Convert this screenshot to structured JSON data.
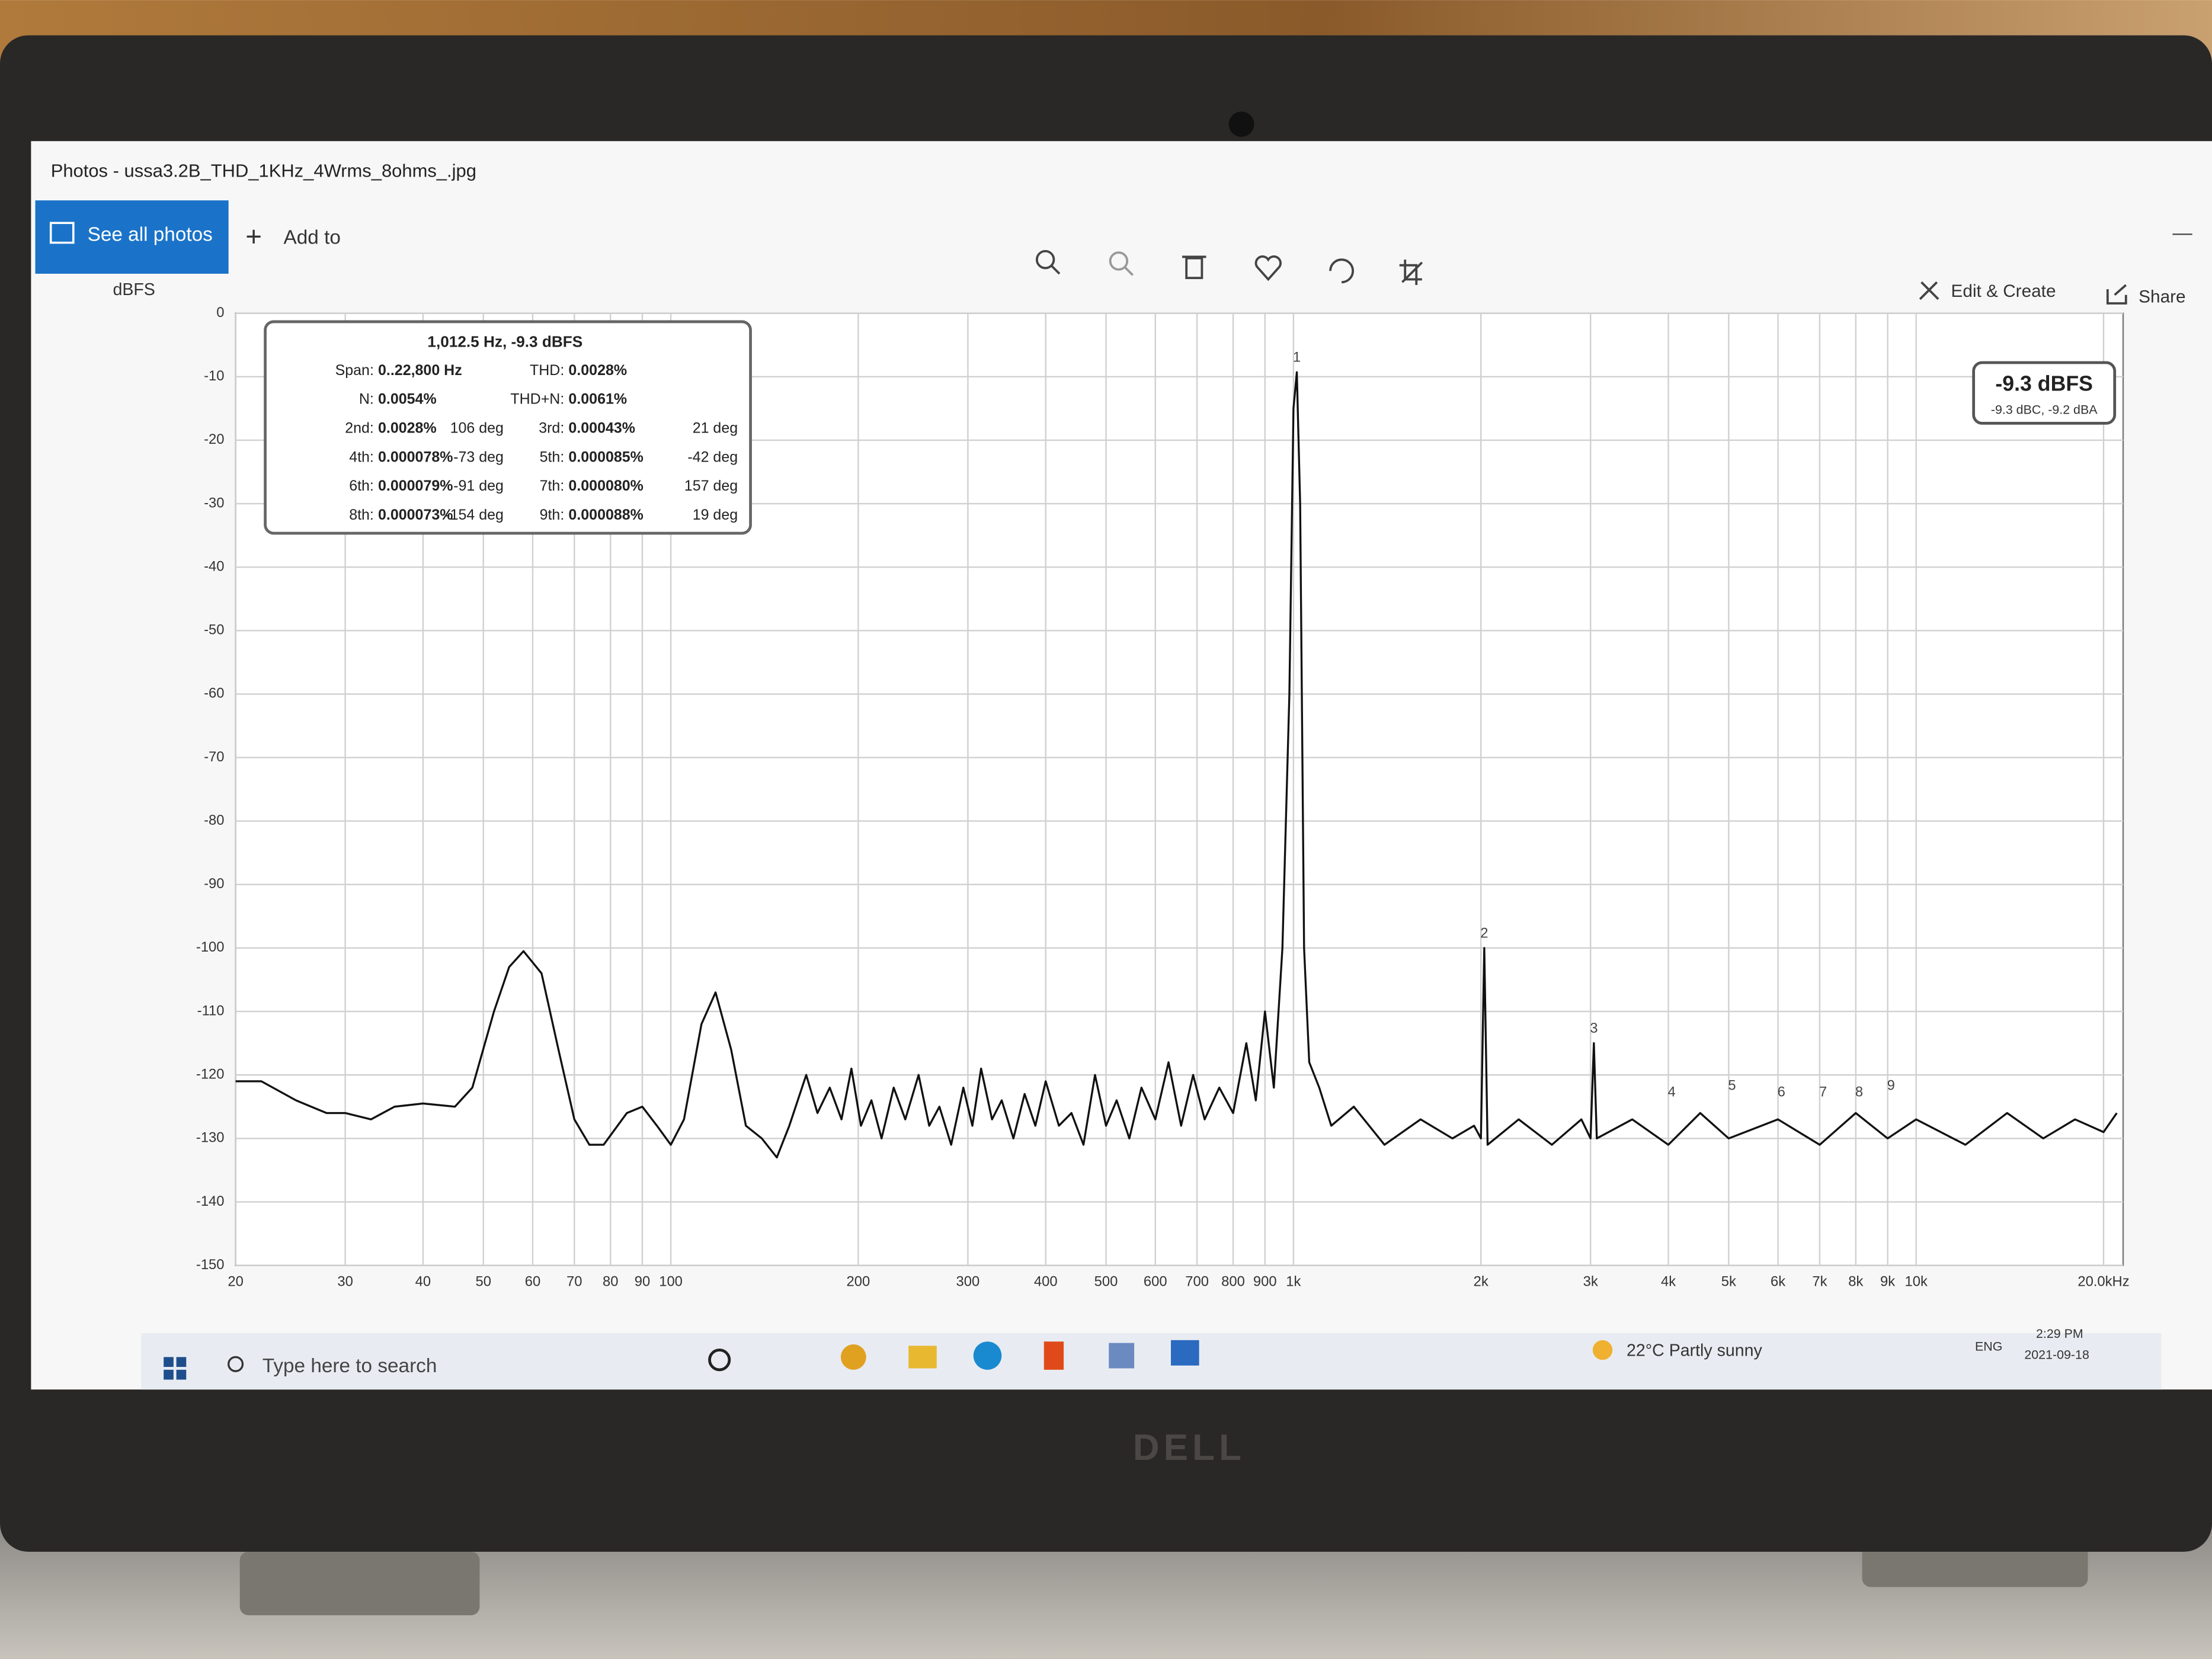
{
  "window": {
    "title": "Photos - ussa3.2B_THD_1KHz_4Wrms_8ohms_.jpg"
  },
  "toolbar": {
    "see_all": "See all photos",
    "add_to": "Add to",
    "edit_create": "Edit & Create",
    "share": "Share"
  },
  "info_box": {
    "title": "1,012.5 Hz, -9.3 dBFS",
    "rows": [
      [
        "Span:",
        "0..22,800 Hz",
        "THD:",
        "0.0028%"
      ],
      [
        "N:",
        "0.0054%",
        "THD+N:",
        "0.0061%"
      ],
      [
        "2nd:",
        "0.0028%",
        "106 deg",
        "3rd:",
        "0.00043%",
        "21 deg"
      ],
      [
        "4th:",
        "0.000078%",
        "-73 deg",
        "5th:",
        "0.000085%",
        "-42 deg"
      ],
      [
        "6th:",
        "0.000079%",
        "-91 deg",
        "7th:",
        "0.000080%",
        "157 deg"
      ],
      [
        "8th:",
        "0.000073%",
        "-154 deg",
        "9th:",
        "0.000088%",
        "19 deg"
      ]
    ]
  },
  "readout": {
    "main": "-9.3 dBFS",
    "sub": "-9.3 dBC, -9.2 dBA"
  },
  "chart_data": {
    "type": "line",
    "y_label": "dBFS",
    "log_x": true,
    "grid": true,
    "color": "#111111",
    "xlim": [
      20,
      21500
    ],
    "ylim": [
      -150,
      0
    ],
    "yticks": [
      0,
      -10,
      -20,
      -30,
      -40,
      -50,
      -60,
      -70,
      -80,
      -90,
      -100,
      -110,
      -120,
      -130,
      -140,
      -150
    ],
    "xticks": [
      20,
      30,
      40,
      50,
      60,
      70,
      80,
      90,
      100,
      200,
      300,
      400,
      500,
      600,
      700,
      800,
      900,
      {
        "value": 1000,
        "label": "1k"
      },
      {
        "value": 2000,
        "label": "2k"
      },
      {
        "value": 3000,
        "label": "3k"
      },
      {
        "value": 4000,
        "label": "4k"
      },
      {
        "value": 5000,
        "label": "5k"
      },
      {
        "value": 6000,
        "label": "6k"
      },
      {
        "value": 7000,
        "label": "7k"
      },
      {
        "value": 8000,
        "label": "8k"
      },
      {
        "value": 9000,
        "label": "9k"
      },
      {
        "value": 10000,
        "label": "10k"
      },
      {
        "value": 20000,
        "label": "20.0kHz"
      }
    ],
    "x": [
      20,
      22,
      25,
      28,
      30,
      33,
      36,
      40,
      45,
      48,
      52,
      55,
      58,
      62,
      66,
      70,
      74,
      78,
      85,
      90,
      95,
      100,
      105,
      112,
      118,
      125,
      132,
      140,
      148,
      155,
      165,
      172,
      180,
      188,
      195,
      202,
      210,
      218,
      228,
      238,
      250,
      260,
      270,
      282,
      295,
      305,
      315,
      328,
      340,
      355,
      370,
      385,
      400,
      420,
      440,
      460,
      480,
      500,
      520,
      545,
      570,
      600,
      630,
      660,
      690,
      720,
      760,
      800,
      840,
      870,
      900,
      930,
      960,
      985,
      1000,
      1012.5,
      1025,
      1040,
      1060,
      1100,
      1150,
      1250,
      1400,
      1600,
      1800,
      1950,
      2000,
      2025,
      2050,
      2300,
      2600,
      2900,
      3000,
      3037,
      3070,
      3500,
      4000,
      4500,
      5000,
      6000,
      7000,
      8000,
      9000,
      10000,
      12000,
      14000,
      16000,
      18000,
      20000,
      21000
    ],
    "values": [
      -121,
      -121,
      -124,
      -126,
      -126,
      -127,
      -125,
      -124.5,
      -125,
      -122,
      -110,
      -103,
      -100.5,
      -104,
      -116,
      -127,
      -131,
      -131,
      -126,
      -125,
      -128,
      -131,
      -127,
      -112,
      -107,
      -116,
      -128,
      -130,
      -133,
      -128,
      -120,
      -126,
      -122,
      -127,
      -119,
      -128,
      -124,
      -130,
      -122,
      -127,
      -120,
      -128,
      -125,
      -131,
      -122,
      -128,
      -119,
      -127,
      -124,
      -130,
      -123,
      -128,
      -121,
      -128,
      -126,
      -131,
      -120,
      -128,
      -124,
      -130,
      -122,
      -127,
      -118,
      -128,
      -120,
      -127,
      -122,
      -126,
      -115,
      -124,
      -110,
      -122,
      -100,
      -60,
      -15,
      -9.3,
      -30,
      -100,
      -118,
      -122,
      -128,
      -125,
      -131,
      -127,
      -130,
      -128,
      -130,
      -100,
      -131,
      -127,
      -131,
      -127,
      -130,
      -115,
      -130,
      -127,
      -131,
      -126,
      -130,
      -127,
      -131,
      -126,
      -130,
      -127,
      -131,
      -126,
      -130,
      -127,
      -129,
      -126
    ],
    "harmonics": [
      {
        "label": "1",
        "x": 1012.5,
        "y": -9.3
      },
      {
        "label": "2",
        "x": 2025,
        "y": -100
      },
      {
        "label": "3",
        "x": 3037,
        "y": -115
      },
      {
        "label": "4",
        "x": 4050,
        "y": -125
      },
      {
        "label": "5",
        "x": 5062.5,
        "y": -124
      },
      {
        "label": "6",
        "x": 6075,
        "y": -125
      },
      {
        "label": "7",
        "x": 7087.5,
        "y": -125
      },
      {
        "label": "8",
        "x": 8100,
        "y": -125
      },
      {
        "label": "9",
        "x": 9112.5,
        "y": -124
      }
    ]
  },
  "taskbar": {
    "search": "Type here to search",
    "weather": "22°C  Partly sunny",
    "lang": "ENG",
    "time": "2:29 PM",
    "date": "2021-09-18"
  },
  "bezel": {
    "logo": "DELL"
  }
}
